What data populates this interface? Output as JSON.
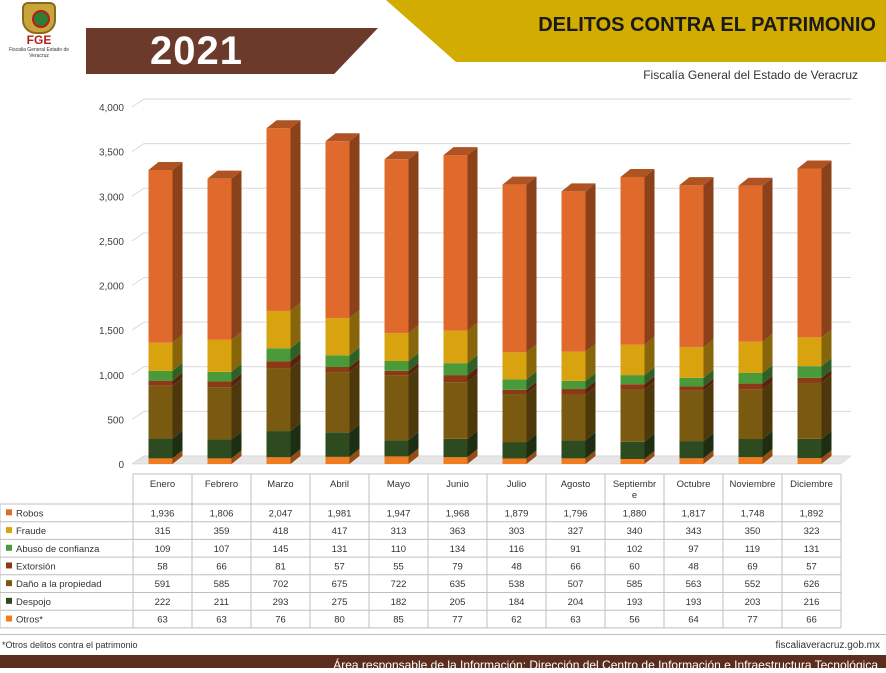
{
  "header": {
    "logo_text": "FGE",
    "logo_subtext": "Fiscalia General Estado de Veracruz",
    "year": "2021",
    "title": "DELITOS CONTRA EL PATRIMONIO",
    "subtitle": "Fiscalía General del Estado de Veracruz"
  },
  "colors": {
    "brand_brown": "#6b3a2a",
    "brand_gold": "#d2ac00"
  },
  "chart_data": {
    "type": "bar",
    "stacked": true,
    "title": "",
    "xlabel": "",
    "ylabel": "",
    "ylim": [
      0,
      4000
    ],
    "yticks": [
      0,
      500,
      1000,
      1500,
      2000,
      2500,
      3000,
      3500,
      4000
    ],
    "ytick_labels": [
      "0",
      "500",
      "1,000",
      "1,500",
      "2,000",
      "2,500",
      "3,000",
      "3,500",
      "4,000"
    ],
    "grid": true,
    "categories": [
      "Enero",
      "Febrero",
      "Marzo",
      "Abril",
      "Mayo",
      "Junio",
      "Julio",
      "Agosto",
      "Septiembre",
      "Octubre",
      "Noviembre",
      "Diciembre"
    ],
    "series": [
      {
        "name": "Otros*",
        "color": "#f07c1f",
        "values": [
          63,
          63,
          76,
          80,
          85,
          77,
          62,
          63,
          56,
          64,
          77,
          66
        ],
        "labels": [
          "63",
          "63",
          "76",
          "80",
          "85",
          "77",
          "62",
          "63",
          "56",
          "64",
          "77",
          "66"
        ]
      },
      {
        "name": "Despojo",
        "color": "#2e4a1f",
        "values": [
          222,
          211,
          293,
          275,
          182,
          205,
          184,
          204,
          193,
          193,
          203,
          216
        ],
        "labels": [
          "222",
          "211",
          "293",
          "275",
          "182",
          "205",
          "184",
          "204",
          "193",
          "193",
          "203",
          "216"
        ]
      },
      {
        "name": "Daño a la propiedad",
        "color": "#7a5a10",
        "values": [
          591,
          585,
          702,
          675,
          722,
          635,
          538,
          507,
          585,
          563,
          552,
          626
        ],
        "labels": [
          "591",
          "585",
          "702",
          "675",
          "722",
          "635",
          "538",
          "507",
          "585",
          "563",
          "552",
          "626"
        ]
      },
      {
        "name": "Extorsión",
        "color": "#8a3a14",
        "values": [
          58,
          66,
          81,
          57,
          55,
          79,
          48,
          66,
          60,
          48,
          69,
          57
        ],
        "labels": [
          "58",
          "66",
          "81",
          "57",
          "55",
          "79",
          "48",
          "66",
          "60",
          "48",
          "69",
          "57"
        ]
      },
      {
        "name": "Abuso de confianza",
        "color": "#4a9a3a",
        "values": [
          109,
          107,
          145,
          131,
          110,
          134,
          116,
          91,
          102,
          97,
          119,
          131
        ],
        "labels": [
          "109",
          "107",
          "145",
          "131",
          "110",
          "134",
          "116",
          "91",
          "102",
          "97",
          "119",
          "131"
        ]
      },
      {
        "name": "Fraude",
        "color": "#d9a310",
        "values": [
          315,
          359,
          418,
          417,
          313,
          363,
          303,
          327,
          340,
          343,
          350,
          323
        ],
        "labels": [
          "315",
          "359",
          "418",
          "417",
          "313",
          "363",
          "303",
          "327",
          "340",
          "343",
          "350",
          "323"
        ]
      },
      {
        "name": "Robos",
        "color": "#e06a2c",
        "values": [
          1936,
          1806,
          2047,
          1981,
          1947,
          1968,
          1879,
          1796,
          1880,
          1817,
          1748,
          1892
        ],
        "labels": [
          "1,936",
          "1,806",
          "2,047",
          "1,981",
          "1,947",
          "1,968",
          "1,879",
          "1,796",
          "1,880",
          "1,817",
          "1,748",
          "1,892"
        ]
      }
    ],
    "table_row_order": [
      "Robos",
      "Fraude",
      "Abuso de confianza",
      "Extorsión",
      "Daño a la propiedad",
      "Despojo",
      "Otros*"
    ]
  },
  "footer": {
    "note": "*Otros delitos contra el patrimonio",
    "url": "fiscaliaveracruz.gob.mx",
    "responsible_area": "Área responsable de la Información: Dirección del Centro de Información e Infraestructura Tecnológica"
  }
}
